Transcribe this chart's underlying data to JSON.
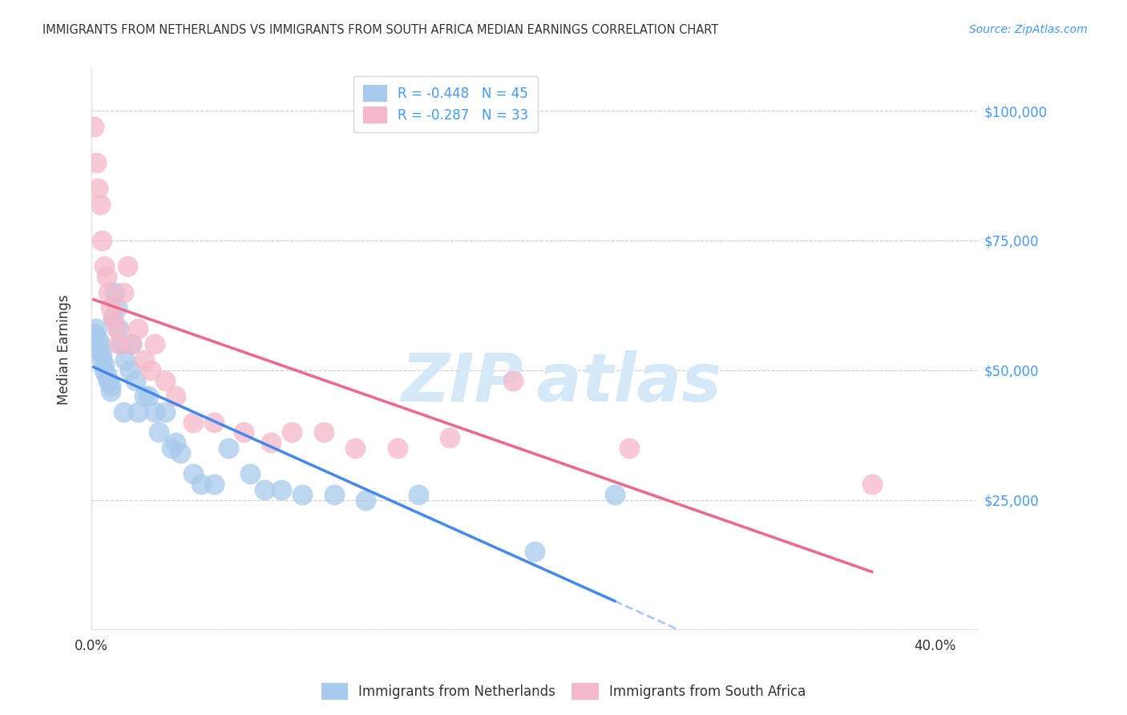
{
  "title": "IMMIGRANTS FROM NETHERLANDS VS IMMIGRANTS FROM SOUTH AFRICA MEDIAN EARNINGS CORRELATION CHART",
  "source": "Source: ZipAtlas.com",
  "ylabel": "Median Earnings",
  "y_ticks": [
    0,
    25000,
    50000,
    75000,
    100000
  ],
  "y_tick_labels": [
    "",
    "$25,000",
    "$50,000",
    "$75,000",
    "$100,000"
  ],
  "x_ticks": [
    0.0,
    0.05,
    0.1,
    0.15,
    0.2,
    0.25,
    0.3,
    0.35,
    0.4
  ],
  "xlim": [
    0.0,
    0.42
  ],
  "ylim": [
    0,
    108000
  ],
  "legend_blue_label": "R = -0.448   N = 45",
  "legend_pink_label": "R = -0.287   N = 33",
  "netherlands_label": "Immigrants from Netherlands",
  "south_africa_label": "Immigrants from South Africa",
  "blue_color": "#A8CAEC",
  "pink_color": "#F5B8CA",
  "blue_line_color": "#4488EE",
  "pink_line_color": "#EE6688",
  "watermark_color": "#D5E8F8",
  "title_color": "#333333",
  "right_axis_color": "#4499FF",
  "netherlands_x": [
    0.001,
    0.002,
    0.003,
    0.003,
    0.004,
    0.005,
    0.005,
    0.006,
    0.006,
    0.007,
    0.008,
    0.009,
    0.009,
    0.01,
    0.011,
    0.012,
    0.013,
    0.014,
    0.015,
    0.016,
    0.018,
    0.019,
    0.021,
    0.022,
    0.025,
    0.027,
    0.03,
    0.032,
    0.035,
    0.038,
    0.04,
    0.042,
    0.048,
    0.052,
    0.058,
    0.065,
    0.075,
    0.082,
    0.09,
    0.1,
    0.115,
    0.13,
    0.155,
    0.21,
    0.248
  ],
  "netherlands_y": [
    57000,
    58000,
    56000,
    54000,
    55000,
    52000,
    53000,
    50000,
    51000,
    49000,
    48000,
    47000,
    46000,
    60000,
    65000,
    62000,
    58000,
    55000,
    42000,
    52000,
    50000,
    55000,
    48000,
    42000,
    45000,
    45000,
    42000,
    38000,
    42000,
    35000,
    36000,
    34000,
    30000,
    28000,
    28000,
    35000,
    30000,
    27000,
    27000,
    26000,
    26000,
    25000,
    26000,
    15000,
    26000
  ],
  "south_africa_x": [
    0.001,
    0.002,
    0.003,
    0.004,
    0.005,
    0.006,
    0.007,
    0.008,
    0.009,
    0.01,
    0.012,
    0.013,
    0.015,
    0.017,
    0.019,
    0.022,
    0.025,
    0.028,
    0.03,
    0.035,
    0.04,
    0.048,
    0.058,
    0.072,
    0.085,
    0.095,
    0.11,
    0.125,
    0.145,
    0.17,
    0.2,
    0.255,
    0.37
  ],
  "south_africa_y": [
    97000,
    90000,
    85000,
    82000,
    75000,
    70000,
    68000,
    65000,
    62000,
    60000,
    58000,
    55000,
    65000,
    70000,
    55000,
    58000,
    52000,
    50000,
    55000,
    48000,
    45000,
    40000,
    40000,
    38000,
    36000,
    38000,
    38000,
    35000,
    35000,
    37000,
    48000,
    35000,
    28000
  ]
}
